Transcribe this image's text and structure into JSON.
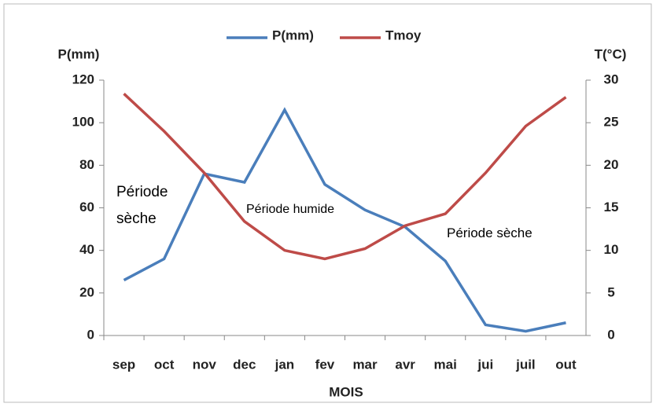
{
  "chart_data": {
    "type": "line",
    "categories": [
      "sep",
      "oct",
      "nov",
      "dec",
      "jan",
      "fev",
      "mar",
      "avr",
      "mai",
      "jui",
      "juil",
      "out"
    ],
    "series": [
      {
        "name": "P(mm)",
        "color": "#4a7ebb",
        "values": [
          26,
          36,
          76,
          72,
          106,
          71,
          59,
          51,
          35,
          5,
          2,
          6
        ]
      },
      {
        "name": "Tmoy",
        "color": "#be4b48",
        "axis": "y2",
        "values": [
          28.4,
          24,
          19.1,
          13.4,
          10,
          9,
          10.2,
          12.9,
          14.3,
          19.1,
          24.6,
          28
        ]
      }
    ],
    "ylabel": "P(mm)",
    "y2label": "T(°C)",
    "xlabel": "MOIS",
    "ylim": [
      0,
      120
    ],
    "yticks": [
      0,
      20,
      40,
      60,
      80,
      100,
      120
    ],
    "y2lim": [
      0,
      30
    ],
    "y2ticks": [
      0,
      5,
      10,
      15,
      20,
      25,
      30
    ],
    "annotations": [
      "Période sèche",
      "Période humide",
      "Période sèche"
    ],
    "grid": false,
    "legend": "top"
  }
}
